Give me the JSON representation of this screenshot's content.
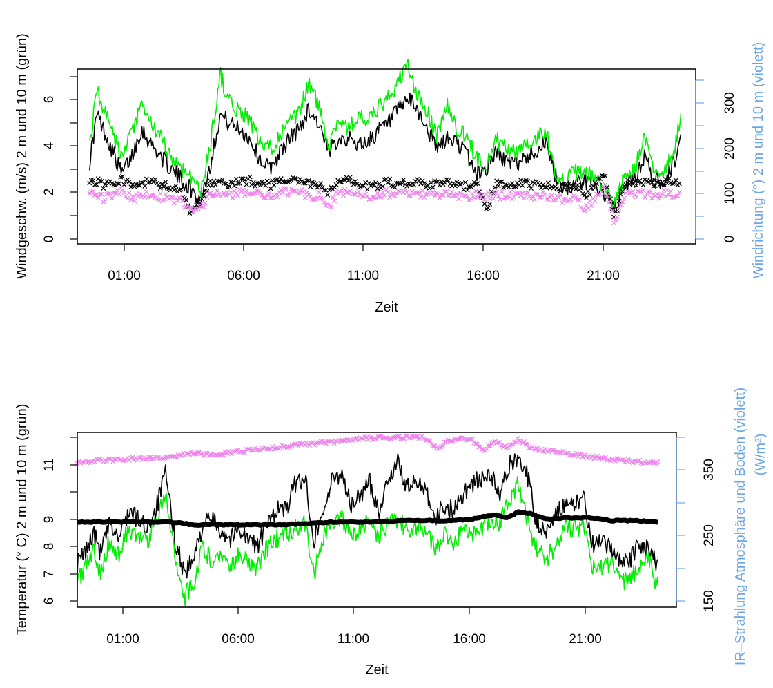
{
  "colors": {
    "speed_2m": "#000000",
    "speed_10m": "#00ee00",
    "direction_2m": "#000000",
    "direction_10m": "#ee82ee",
    "right_axis": "#6ca6e6",
    "frame": "#000000"
  },
  "chart_data": [
    {
      "type": "line",
      "xlabel": "Zeit",
      "ylabel": "Windgeschw. (m/s) 2 m und 10 m (grün)",
      "ylabel_right": "Windrichtung (°) 2 m und 10 m (violett)",
      "xlim": [
        -0.8,
        24.3
      ],
      "ylim": [
        0,
        7
      ],
      "ylim_right": [
        0,
        350
      ],
      "x_ticks": [
        1,
        6,
        11,
        16,
        21
      ],
      "x_tick_labels": [
        "01:00",
        "06:00",
        "11:00",
        "16:00",
        "21:00"
      ],
      "y_ticks": [
        0,
        2,
        4,
        6
      ],
      "y_tick_labels": [
        "0",
        "2",
        "4",
        "6"
      ],
      "y_minor_ticks": [
        1,
        3,
        5,
        7
      ],
      "y_right_ticks": [
        0,
        100,
        200,
        300
      ],
      "y_right_tick_labels": [
        "0",
        "100",
        "200",
        "300"
      ],
      "y_right_minor_ticks": [
        50,
        150,
        250,
        350
      ],
      "grid": false,
      "legend": "none",
      "series": [
        {
          "axis": "left",
          "style": "line",
          "color": "#000000",
          "x": [
            -0.3,
            0.0,
            0.3,
            0.6,
            1.0,
            1.4,
            1.8,
            2.2,
            2.6,
            3.0,
            3.4,
            3.8,
            4.2,
            4.6,
            5.0,
            5.4,
            5.8,
            6.2,
            6.6,
            7.0,
            7.4,
            7.8,
            8.2,
            8.6,
            9.0,
            9.4,
            9.8,
            10.2,
            10.6,
            11.0,
            11.4,
            11.8,
            12.2,
            12.6,
            13.0,
            13.4,
            13.8,
            14.2,
            14.6,
            15.0,
            15.4,
            15.8,
            16.2,
            16.6,
            17.0,
            17.4,
            17.8,
            18.2,
            18.6,
            19.0,
            19.4,
            19.8,
            20.2,
            20.6,
            21.0,
            21.4,
            21.8,
            22.2,
            22.6,
            23.0,
            23.4,
            23.7
          ],
          "y": [
            3.3,
            5.2,
            4.5,
            3.8,
            2.8,
            3.5,
            4.6,
            4.0,
            3.5,
            3.0,
            2.6,
            2.2,
            1.7,
            3.2,
            5.2,
            4.8,
            4.6,
            4.2,
            3.4,
            3.0,
            3.6,
            4.2,
            4.6,
            5.4,
            4.8,
            3.6,
            4.3,
            4.2,
            4.0,
            4.1,
            4.5,
            4.8,
            5.3,
            5.8,
            5.4,
            4.6,
            3.8,
            4.2,
            4.1,
            3.6,
            2.8,
            3.0,
            3.7,
            3.3,
            3.2,
            3.5,
            3.7,
            4.1,
            2.7,
            2.2,
            2.4,
            2.5,
            2.4,
            2.0,
            1.3,
            2.4,
            2.5,
            3.5,
            2.6,
            2.5,
            3.2,
            4.2
          ]
        },
        {
          "axis": "left",
          "style": "line",
          "color": "#00ee00",
          "x": [
            -0.3,
            0.0,
            0.3,
            0.6,
            1.0,
            1.4,
            1.8,
            2.2,
            2.6,
            3.0,
            3.4,
            3.8,
            4.2,
            4.6,
            5.0,
            5.4,
            5.8,
            6.2,
            6.6,
            7.0,
            7.4,
            7.8,
            8.2,
            8.6,
            9.0,
            9.4,
            9.8,
            10.2,
            10.6,
            11.0,
            11.4,
            11.8,
            12.2,
            12.6,
            13.0,
            13.4,
            13.8,
            14.2,
            14.6,
            15.0,
            15.4,
            15.8,
            16.2,
            16.6,
            17.0,
            17.4,
            17.8,
            18.2,
            18.6,
            19.0,
            19.4,
            19.8,
            20.2,
            20.6,
            21.0,
            21.4,
            21.8,
            22.2,
            22.6,
            23.0,
            23.4,
            23.7
          ],
          "y": [
            4.0,
            6.2,
            5.3,
            4.5,
            3.4,
            4.4,
            5.5,
            4.8,
            4.2,
            3.5,
            3.0,
            2.8,
            2.0,
            4.0,
            6.8,
            5.6,
            5.3,
            5.0,
            4.0,
            3.8,
            4.3,
            4.8,
            5.2,
            6.5,
            5.5,
            4.0,
            5.0,
            4.6,
            5.1,
            4.9,
            5.4,
            5.8,
            6.4,
            7.2,
            5.9,
            5.3,
            4.3,
            5.6,
            4.6,
            4.3,
            3.4,
            3.2,
            4.2,
            3.8,
            3.6,
            4.1,
            4.2,
            4.6,
            2.9,
            2.5,
            2.9,
            2.8,
            2.7,
            2.2,
            1.5,
            2.7,
            2.9,
            4.2,
            3.0,
            2.9,
            3.6,
            5.3
          ]
        },
        {
          "axis": "right",
          "style": "cross",
          "color": "#000000",
          "x": [
            -0.3,
            0.0,
            0.3,
            0.6,
            1.0,
            1.4,
            1.8,
            2.2,
            2.6,
            3.0,
            3.4,
            3.8,
            4.2,
            4.6,
            5.0,
            5.4,
            5.8,
            6.2,
            6.6,
            7.0,
            7.4,
            7.8,
            8.2,
            8.6,
            9.0,
            9.4,
            9.8,
            10.2,
            10.6,
            11.0,
            11.4,
            11.8,
            12.2,
            12.6,
            13.0,
            13.4,
            13.8,
            14.2,
            14.6,
            15.0,
            15.4,
            15.8,
            16.2,
            16.6,
            17.0,
            17.4,
            17.8,
            18.2,
            18.6,
            19.0,
            19.4,
            19.8,
            20.2,
            20.6,
            21.0,
            21.4,
            21.8,
            22.2,
            22.6,
            23.0,
            23.4,
            23.7
          ],
          "y": [
            120,
            125,
            118,
            122,
            130,
            115,
            120,
            125,
            118,
            115,
            110,
            60,
            80,
            120,
            122,
            118,
            125,
            128,
            120,
            118,
            122,
            130,
            125,
            120,
            118,
            100,
            125,
            128,
            120,
            115,
            118,
            125,
            120,
            122,
            125,
            118,
            120,
            122,
            118,
            115,
            120,
            70,
            120,
            118,
            122,
            120,
            118,
            120,
            115,
            112,
            118,
            95,
            115,
            140,
            50,
            120,
            125,
            122,
            118,
            125,
            122,
            120
          ]
        },
        {
          "axis": "right",
          "style": "cross",
          "color": "#ee82ee",
          "x": [
            -0.3,
            0.0,
            0.3,
            0.6,
            1.0,
            1.4,
            1.8,
            2.2,
            2.6,
            3.0,
            3.4,
            3.8,
            4.2,
            4.6,
            5.0,
            5.4,
            5.8,
            6.2,
            6.6,
            7.0,
            7.4,
            7.8,
            8.2,
            8.6,
            9.0,
            9.4,
            9.8,
            10.2,
            10.6,
            11.0,
            11.4,
            11.8,
            12.2,
            12.6,
            13.0,
            13.4,
            13.8,
            14.2,
            14.6,
            15.0,
            15.4,
            15.8,
            16.2,
            16.6,
            17.0,
            17.4,
            17.8,
            18.2,
            18.6,
            19.0,
            19.4,
            19.8,
            20.2,
            20.6,
            21.0,
            21.4,
            21.8,
            22.2,
            22.6,
            23.0,
            23.4,
            23.7
          ],
          "y": [
            95,
            100,
            90,
            98,
            105,
            92,
            96,
            100,
            94,
            90,
            85,
            65,
            75,
            98,
            100,
            96,
            102,
            104,
            98,
            95,
            100,
            106,
            102,
            98,
            96,
            75,
            102,
            105,
            98,
            94,
            96,
            102,
            98,
            100,
            102,
            96,
            98,
            100,
            96,
            92,
            98,
            95,
            98,
            96,
            100,
            98,
            96,
            98,
            92,
            88,
            95,
            70,
            92,
            118,
            45,
            98,
            102,
            100,
            96,
            102,
            100,
            98
          ]
        }
      ]
    },
    {
      "type": "line",
      "xlabel": "Zeit",
      "ylabel": "Temperatur (° C) 2 m und 10 m (grün)",
      "ylabel_right_line1": "IR–Strahlung Atmosphäre und Boden (violett)",
      "ylabel_right_line2": "(W/m²)",
      "xlim": [
        -1.0,
        24.8
      ],
      "ylim": [
        5.75,
        12.0
      ],
      "ylim_right": [
        140,
        400
      ],
      "x_ticks": [
        1,
        6,
        11,
        16,
        21
      ],
      "x_tick_labels": [
        "01:00",
        "06:00",
        "11:00",
        "16:00",
        "21:00"
      ],
      "y_ticks": [
        6,
        7,
        8,
        9,
        11
      ],
      "y_tick_labels": [
        "6",
        "7",
        "8",
        "9",
        "11"
      ],
      "y_minor_ticks": [
        10,
        12
      ],
      "y_right_ticks": [
        150,
        250,
        350
      ],
      "y_right_tick_labels": [
        "150",
        "250",
        "350"
      ],
      "y_right_minor_ticks": [
        200,
        300,
        400
      ],
      "grid": false,
      "legend": "none",
      "series": [
        {
          "axis": "left",
          "style": "line",
          "color": "#000000",
          "x": [
            -1.0,
            -0.6,
            -0.3,
            0.0,
            0.4,
            0.8,
            1.2,
            1.6,
            2.0,
            2.4,
            2.8,
            3.2,
            3.6,
            4.0,
            4.4,
            4.8,
            5.2,
            5.6,
            6.0,
            6.4,
            6.8,
            7.2,
            7.6,
            8.0,
            8.4,
            8.8,
            9.2,
            9.6,
            10.0,
            10.4,
            10.8,
            11.2,
            11.6,
            12.0,
            12.4,
            12.8,
            13.2,
            13.6,
            14.0,
            14.4,
            14.8,
            15.2,
            15.6,
            16.0,
            16.4,
            16.8,
            17.2,
            17.6,
            18.0,
            18.4,
            18.8,
            19.2,
            19.6,
            20.0,
            20.4,
            20.8,
            21.2,
            21.6,
            22.0,
            22.4,
            22.8,
            23.2,
            23.6,
            24.0
          ],
          "y": [
            7.3,
            7.8,
            8.4,
            7.7,
            8.7,
            8.2,
            9.2,
            8.9,
            8.6,
            9.3,
            10.5,
            8.2,
            7.0,
            7.4,
            8.7,
            8.9,
            8.5,
            8.2,
            8.6,
            8.1,
            8.0,
            8.7,
            9.3,
            9.2,
            10.2,
            10.4,
            8.2,
            9.2,
            10.3,
            10.6,
            9.3,
            9.8,
            10.2,
            9.2,
            10.4,
            10.9,
            10.0,
            10.2,
            10.1,
            8.9,
            9.4,
            9.2,
            9.8,
            10.2,
            10.3,
            10.5,
            9.7,
            10.8,
            11.2,
            10.4,
            8.7,
            8.5,
            9.2,
            9.3,
            9.4,
            9.7,
            8.0,
            8.0,
            7.8,
            7.5,
            7.4,
            8.0,
            7.9,
            7.2
          ]
        },
        {
          "axis": "left",
          "style": "line",
          "color": "#00ee00",
          "x": [
            -1.0,
            -0.6,
            -0.3,
            0.0,
            0.4,
            0.8,
            1.2,
            1.6,
            2.0,
            2.4,
            2.8,
            3.2,
            3.6,
            4.0,
            4.4,
            4.8,
            5.2,
            5.6,
            6.0,
            6.4,
            6.8,
            7.2,
            7.6,
            8.0,
            8.4,
            8.8,
            9.2,
            9.6,
            10.0,
            10.4,
            10.8,
            11.2,
            11.6,
            12.0,
            12.4,
            12.8,
            13.2,
            13.6,
            14.0,
            14.4,
            14.8,
            15.2,
            15.6,
            16.0,
            16.4,
            16.8,
            17.2,
            17.6,
            18.0,
            18.4,
            18.8,
            19.2,
            19.6,
            20.0,
            20.4,
            20.8,
            21.2,
            21.6,
            22.0,
            22.4,
            22.8,
            23.2,
            23.6,
            24.0
          ],
          "y": [
            6.6,
            7.2,
            7.8,
            7.0,
            8.2,
            7.6,
            8.6,
            8.2,
            8.1,
            8.8,
            9.9,
            7.7,
            6.1,
            6.6,
            7.9,
            7.4,
            7.6,
            7.3,
            7.7,
            7.3,
            7.2,
            7.9,
            8.2,
            8.4,
            8.6,
            8.8,
            6.9,
            8.3,
            8.8,
            9.0,
            8.3,
            8.6,
            8.8,
            8.3,
            8.7,
            8.9,
            8.5,
            8.6,
            8.5,
            7.9,
            8.3,
            8.1,
            8.5,
            8.4,
            8.6,
            8.8,
            8.8,
            9.5,
            10.2,
            8.8,
            7.8,
            7.5,
            7.9,
            8.6,
            8.6,
            8.6,
            7.2,
            7.1,
            7.3,
            6.6,
            6.8,
            7.2,
            7.4,
            6.5
          ]
        },
        {
          "axis": "left",
          "style": "thick-line",
          "color": "#000000",
          "x": [
            -1.0,
            0.0,
            1.0,
            2.0,
            3.0,
            4.0,
            5.0,
            6.0,
            7.0,
            8.0,
            9.0,
            10.0,
            11.0,
            12.0,
            13.0,
            14.0,
            15.0,
            16.0,
            16.5,
            17.0,
            17.5,
            18.0,
            18.5,
            19.0,
            19.5,
            20.0,
            21.0,
            22.0,
            23.0,
            24.0
          ],
          "y": [
            8.8,
            8.8,
            8.8,
            8.8,
            8.8,
            8.7,
            8.7,
            8.7,
            8.7,
            8.7,
            8.75,
            8.8,
            8.8,
            8.8,
            8.85,
            8.85,
            8.85,
            8.9,
            9.0,
            9.05,
            8.95,
            9.15,
            9.1,
            8.95,
            8.9,
            8.95,
            8.95,
            8.85,
            8.85,
            8.8
          ]
        },
        {
          "axis": "right",
          "style": "cross",
          "color": "#ee82ee",
          "x": [
            -1.0,
            0.0,
            1.0,
            2.0,
            3.0,
            3.5,
            4.0,
            4.5,
            5.0,
            6.0,
            7.0,
            8.0,
            9.0,
            10.0,
            11.0,
            12.0,
            13.0,
            14.0,
            14.5,
            15.0,
            15.5,
            16.0,
            16.5,
            17.0,
            17.5,
            18.0,
            18.5,
            19.0,
            20.0,
            21.0,
            22.0,
            23.0,
            24.0
          ],
          "y": [
            355,
            358,
            360,
            362,
            363,
            366,
            370,
            368,
            366,
            372,
            375,
            380,
            383,
            386,
            390,
            392,
            393,
            392,
            375,
            388,
            390,
            390,
            372,
            388,
            375,
            390,
            378,
            374,
            370,
            364,
            360,
            357,
            354
          ]
        }
      ]
    }
  ]
}
